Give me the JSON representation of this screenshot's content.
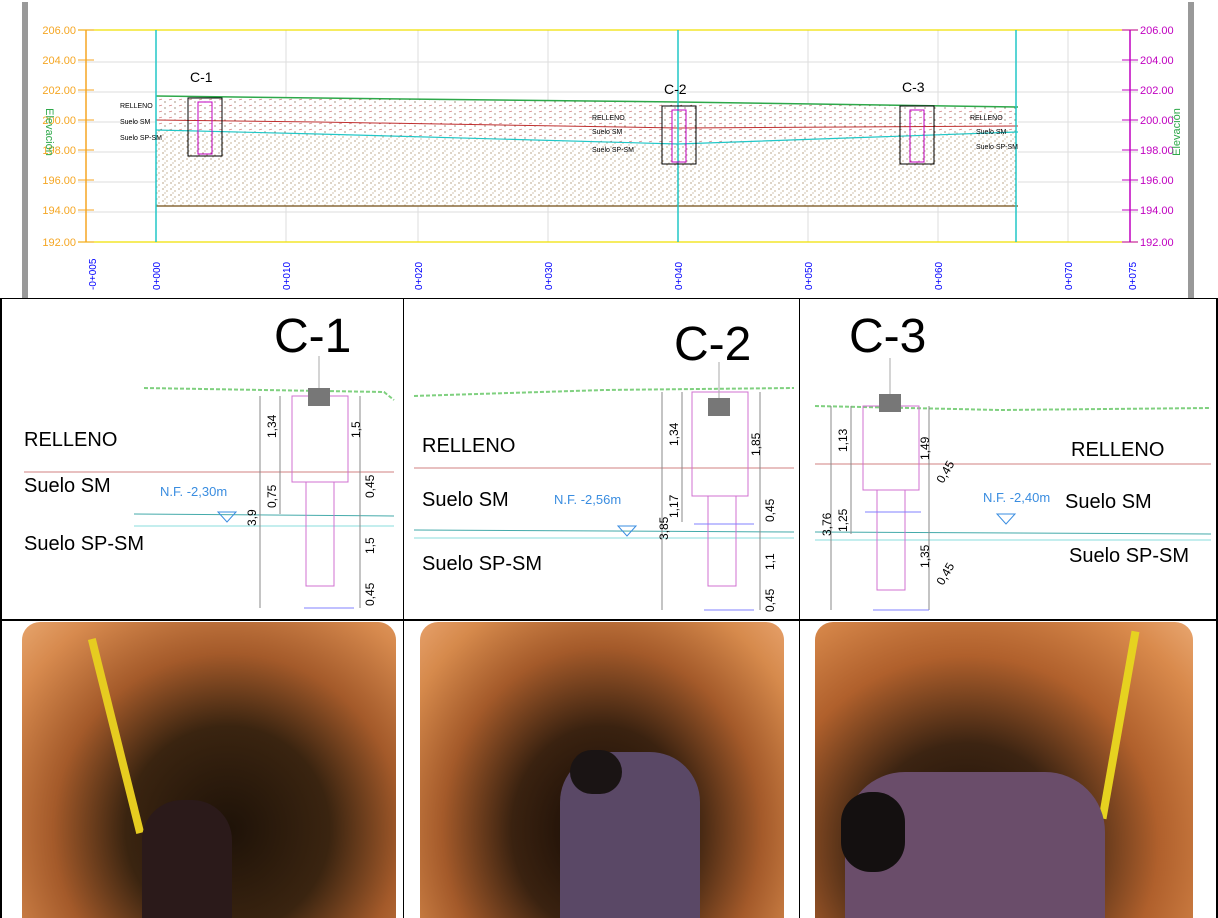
{
  "profile": {
    "elev_ticks": [
      "206.00",
      "204.00",
      "202.00",
      "200.00",
      "198.00",
      "196.00",
      "194.00",
      "192.00"
    ],
    "elev_ticks_right": [
      "206.00",
      "204.00",
      "202.00",
      "200.00",
      "198.00",
      "196.00",
      "194.00",
      "192.00"
    ],
    "station_ticks": [
      "-0+005",
      "0+000",
      "0+010",
      "0+020",
      "0+030",
      "0+040",
      "0+050",
      "0+060",
      "0+070",
      "0+075"
    ],
    "axis_label_left": "Elevación",
    "axis_label_right": "Elevación",
    "pits": [
      {
        "name": "C-1",
        "labels": [
          "RELLENO",
          "Suelo SM",
          "Suelo SP-SM"
        ]
      },
      {
        "name": "C-2",
        "labels": [
          "RELLENO",
          "Suelo SM",
          "Suelo SP-SM"
        ]
      },
      {
        "name": "C-3",
        "labels": [
          "RELLENO",
          "Suelo SM",
          "Suelo SP-SM"
        ]
      }
    ],
    "colors": {
      "elev_left": "#f5a623",
      "elev_right": "#c000c0",
      "station": "#0000ff",
      "ground": "#2ea84a",
      "water": "#22c7c7",
      "relleno_line": "#c03030"
    }
  },
  "details": [
    {
      "name": "C-1",
      "layers": [
        "RELLENO",
        "Suelo SM",
        "Suelo SP-SM"
      ],
      "water_level": "N.F. -2,30m",
      "dims_left": [
        "1,34",
        "0,75",
        "3,9"
      ],
      "dims_right": [
        "1,5",
        "0,45",
        "1,5",
        "0,45"
      ]
    },
    {
      "name": "C-2",
      "layers": [
        "RELLENO",
        "Suelo SM",
        "Suelo SP-SM"
      ],
      "water_level": "N.F. -2,56m",
      "dims_left": [
        "1,34",
        "1,17",
        "3,85"
      ],
      "dims_right": [
        "1,85",
        "0,45",
        "1,1",
        "0,45"
      ]
    },
    {
      "name": "C-3",
      "layers": [
        "RELLENO",
        "Suelo SM",
        "Suelo SP-SM"
      ],
      "water_level": "N.F. -2,40m",
      "dims_left": [
        "1,13",
        "1,25",
        "3,76"
      ],
      "dims_right": [
        "1,49",
        "0,45",
        "1,35",
        "0,45"
      ]
    }
  ],
  "photos": [
    {
      "icon": "excavation-photo-c1-icon"
    },
    {
      "icon": "excavation-photo-c2-icon"
    },
    {
      "icon": "excavation-photo-c3-icon"
    }
  ]
}
